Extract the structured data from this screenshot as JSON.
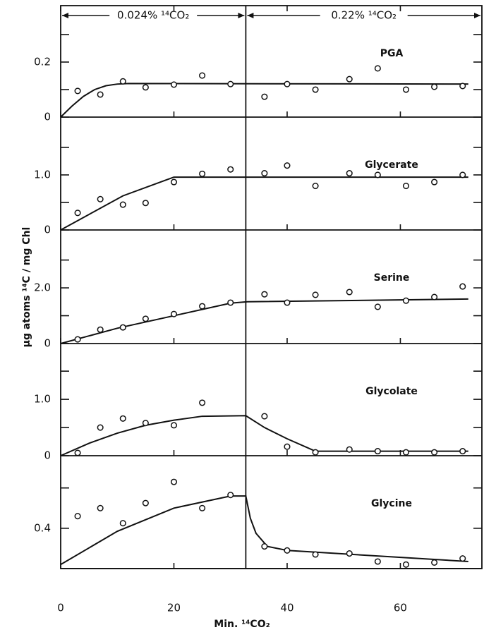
{
  "chart_data": {
    "type": "scatter",
    "ylabel": "µg atoms ¹⁴C / mg Chl",
    "xlabel": "Min. ¹⁴CO₂",
    "x": [
      3,
      7,
      11,
      15,
      20,
      25,
      30,
      36,
      40,
      45,
      51,
      56,
      61,
      66,
      71
    ],
    "xlim": [
      0,
      74.4
    ],
    "xticks": [
      0,
      20,
      40,
      60
    ],
    "divider_x": 32.7,
    "annotations": [
      "0.024% ¹⁴CO₂",
      "0.22% ¹⁴CO₂"
    ],
    "color": "#111111",
    "panels": [
      {
        "name": "PGA",
        "ylim": [
          0,
          0.405
        ],
        "yticks": [
          0,
          0.2
        ],
        "minor_yticks": [
          0.1,
          0.3
        ],
        "values": [
          0.095,
          0.082,
          0.13,
          0.108,
          0.118,
          0.151,
          0.12,
          0.074,
          0.12,
          0.1,
          0.138,
          0.177,
          0.1,
          0.11,
          0.113
        ],
        "fit_x": [
          0,
          2,
          4,
          6,
          8,
          10,
          12,
          72
        ],
        "fit_y": [
          0,
          0.04,
          0.075,
          0.1,
          0.114,
          0.12,
          0.122,
          0.12
        ]
      },
      {
        "name": "Glycerate",
        "ylim": [
          0,
          2.05
        ],
        "yticks": [
          0,
          {
            "value": 1,
            "label": "1.0"
          }
        ],
        "minor_yticks": [
          0.5,
          1.5
        ],
        "values": [
          0.31,
          0.56,
          0.46,
          0.49,
          0.87,
          1.02,
          1.1,
          1.03,
          1.17,
          0.8,
          1.03,
          1.0,
          0.8,
          0.87,
          1.0
        ],
        "fit_x": [
          0,
          11,
          20,
          72
        ],
        "fit_y": [
          0,
          0.62,
          0.96,
          0.96
        ]
      },
      {
        "name": "Serine",
        "ylim": [
          0,
          4.08
        ],
        "yticks": [
          0,
          {
            "value": 2,
            "label": "2.0"
          }
        ],
        "minor_yticks": [
          1,
          3
        ],
        "values": [
          0.15,
          0.5,
          0.58,
          0.89,
          1.06,
          1.34,
          1.47,
          1.77,
          1.47,
          1.75,
          1.85,
          1.32,
          1.54,
          1.67,
          2.05
        ],
        "fit_x": [
          0,
          10,
          20,
          30,
          33,
          72
        ],
        "fit_y": [
          0,
          0.55,
          1.0,
          1.45,
          1.5,
          1.6
        ]
      },
      {
        "name": "Glycolate",
        "ylim": [
          0,
          1.99
        ],
        "yticks": [
          0,
          {
            "value": 1,
            "label": "1.0"
          }
        ],
        "minor_yticks": [
          0.5,
          1.5
        ],
        "values": [
          0.05,
          0.5,
          0.66,
          0.58,
          0.54,
          0.94,
          null,
          0.7,
          0.16,
          0.06,
          0.11,
          0.08,
          0.06,
          0.06,
          0.08
        ],
        "fit_x": [
          0,
          5,
          10,
          15,
          20,
          25,
          32.7,
          36,
          40,
          45,
          72
        ],
        "fit_y": [
          0,
          0.22,
          0.4,
          0.54,
          0.63,
          0.7,
          0.71,
          0.5,
          0.3,
          0.08,
          0.08
        ]
      },
      {
        "name": "Glycine",
        "ylim": [
          0,
          1.12
        ],
        "yticks": [
          0.4
        ],
        "minor_yticks": [
          0.8
        ],
        "values": [
          0.52,
          0.6,
          0.45,
          0.65,
          0.86,
          0.6,
          0.73,
          0.22,
          0.18,
          0.14,
          0.15,
          0.07,
          0.04,
          0.06,
          0.1
        ],
        "fit_x": [
          0,
          10,
          20,
          30,
          32.7,
          33.5,
          34.5,
          36.5,
          40,
          72
        ],
        "fit_y": [
          0.04,
          0.37,
          0.6,
          0.72,
          0.72,
          0.5,
          0.35,
          0.22,
          0.18,
          0.07
        ]
      }
    ]
  }
}
